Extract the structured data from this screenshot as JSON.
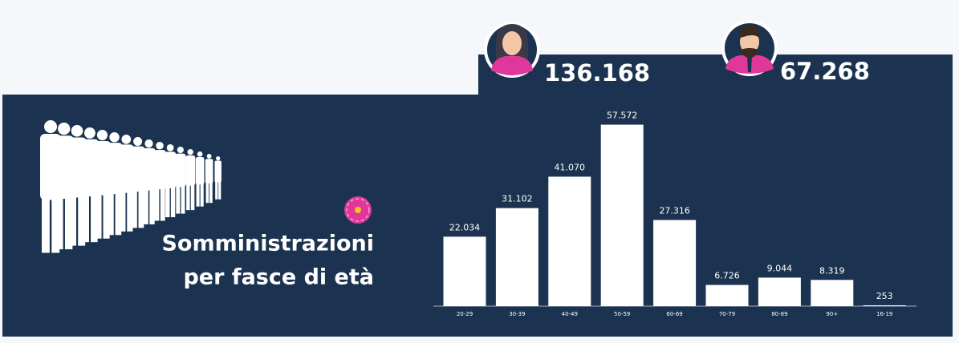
{
  "totals": {
    "female": "136.168",
    "male": "67.268"
  },
  "panel": {
    "title_lines": [
      "Somministrazioni",
      "per fasce di età"
    ]
  },
  "chart_data": {
    "type": "bar",
    "categories": [
      "20-29",
      "30-39",
      "40-49",
      "50-59",
      "60-69",
      "70-79",
      "80-89",
      "90+",
      "16-19"
    ],
    "values": [
      22034,
      31102,
      41070,
      57572,
      27316,
      6726,
      9044,
      8319,
      253
    ],
    "value_labels": [
      "22.034",
      "31.102",
      "41.070",
      "57.572",
      "27.316",
      "6.726",
      "9.044",
      "8.319",
      "253"
    ],
    "color": "#ffffff",
    "ylim": [
      0,
      60000
    ]
  }
}
